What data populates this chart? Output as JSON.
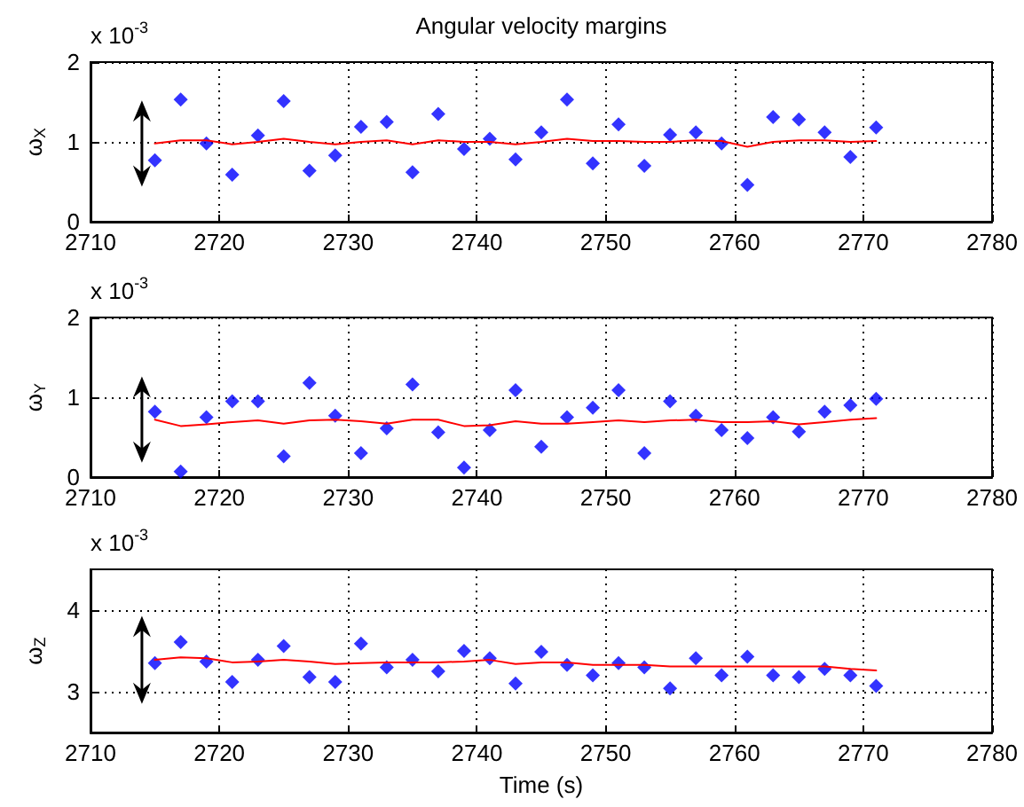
{
  "chart_data": [
    {
      "type": "scatter",
      "title": "Angular velocity margins",
      "ylabel": "ω$_{X}$",
      "annotations": [
        "x 10$^{-3}$"
      ],
      "x": [
        2715,
        2717,
        2719,
        2721,
        2723,
        2725,
        2727,
        2729,
        2731,
        2733,
        2735,
        2737,
        2739,
        2741,
        2743,
        2745,
        2747,
        2749,
        2751,
        2753,
        2755,
        2757,
        2759,
        2761,
        2763,
        2765,
        2767,
        2769,
        2771
      ],
      "series": [
        {
          "type": "scatter",
          "color": "#0000ff",
          "marker": "diamond",
          "values": [
            0.77,
            1.53,
            0.98,
            0.59,
            1.08,
            1.51,
            0.64,
            0.83,
            1.19,
            1.25,
            0.62,
            1.35,
            0.91,
            1.04,
            0.78,
            1.12,
            1.53,
            0.73,
            1.22,
            0.7,
            1.09,
            1.12,
            0.98,
            0.46,
            1.31,
            1.28,
            1.12,
            0.81,
            1.18
          ]
        },
        {
          "type": "line",
          "color": "#ff0000",
          "marker": "none",
          "values": [
            0.98,
            1.02,
            1.02,
            0.97,
            1.0,
            1.04,
            1.0,
            0.97,
            1.0,
            1.02,
            0.97,
            1.02,
            1.0,
            1.0,
            0.97,
            1.0,
            1.04,
            1.01,
            1.01,
            1.0,
            1.0,
            1.02,
            1.01,
            0.94,
            1.0,
            1.02,
            1.02,
            1.0,
            1.01
          ]
        }
      ],
      "xlim": [
        2710,
        2780
      ],
      "xticks": [
        2710,
        2720,
        2730,
        2740,
        2750,
        2760,
        2770,
        2780
      ],
      "ylim": [
        0,
        2
      ],
      "yticks": [
        0,
        1,
        2
      ],
      "grid": true
    },
    {
      "type": "scatter",
      "ylabel": "ω$_{Y}$",
      "annotations": [
        "x 10$^{-3}$"
      ],
      "x": [
        2715,
        2717,
        2719,
        2721,
        2723,
        2725,
        2727,
        2729,
        2731,
        2733,
        2735,
        2737,
        2739,
        2741,
        2743,
        2745,
        2747,
        2749,
        2751,
        2753,
        2755,
        2757,
        2759,
        2761,
        2763,
        2765,
        2767,
        2769,
        2771
      ],
      "series": [
        {
          "type": "scatter",
          "color": "#0000ff",
          "marker": "diamond",
          "values": [
            0.82,
            0.07,
            0.75,
            0.95,
            0.95,
            0.26,
            1.18,
            0.77,
            0.3,
            0.61,
            1.16,
            0.56,
            0.12,
            0.59,
            1.09,
            0.38,
            0.75,
            0.87,
            1.09,
            0.3,
            0.95,
            0.77,
            0.59,
            0.49,
            0.75,
            0.57,
            0.82,
            0.9,
            0.98
          ]
        },
        {
          "type": "line",
          "color": "#ff0000",
          "marker": "none",
          "values": [
            0.72,
            0.64,
            0.66,
            0.69,
            0.71,
            0.67,
            0.71,
            0.72,
            0.7,
            0.67,
            0.72,
            0.72,
            0.64,
            0.65,
            0.7,
            0.67,
            0.67,
            0.69,
            0.71,
            0.69,
            0.71,
            0.72,
            0.69,
            0.69,
            0.7,
            0.66,
            0.69,
            0.72,
            0.74
          ]
        }
      ],
      "xlim": [
        2710,
        2780
      ],
      "xticks": [
        2710,
        2720,
        2730,
        2740,
        2750,
        2760,
        2770,
        2780
      ],
      "ylim": [
        0,
        2
      ],
      "yticks": [
        0,
        1,
        2
      ],
      "grid": true
    },
    {
      "type": "scatter",
      "xlabel": "Time (s)",
      "ylabel": "ω$_{Z}$",
      "annotations": [
        "x 10$^{-3}$"
      ],
      "x": [
        2715,
        2717,
        2719,
        2721,
        2723,
        2725,
        2727,
        2729,
        2731,
        2733,
        2735,
        2737,
        2739,
        2741,
        2743,
        2745,
        2747,
        2749,
        2751,
        2753,
        2755,
        2757,
        2759,
        2761,
        2763,
        2765,
        2767,
        2769,
        2771
      ],
      "series": [
        {
          "type": "scatter",
          "color": "#0000ff",
          "marker": "diamond",
          "values": [
            3.35,
            3.61,
            3.37,
            3.12,
            3.39,
            3.56,
            3.18,
            3.12,
            3.59,
            3.3,
            3.39,
            3.25,
            3.5,
            3.41,
            3.1,
            3.49,
            3.33,
            3.2,
            3.35,
            3.3,
            3.04,
            3.41,
            3.2,
            3.43,
            3.2,
            3.18,
            3.28,
            3.2,
            3.07
          ]
        },
        {
          "type": "line",
          "color": "#ff0000",
          "marker": "none",
          "values": [
            3.39,
            3.42,
            3.41,
            3.36,
            3.37,
            3.39,
            3.37,
            3.34,
            3.35,
            3.36,
            3.36,
            3.36,
            3.37,
            3.39,
            3.34,
            3.36,
            3.36,
            3.33,
            3.33,
            3.33,
            3.31,
            3.31,
            3.31,
            3.31,
            3.31,
            3.31,
            3.31,
            3.28,
            3.26
          ]
        }
      ],
      "xlim": [
        2710,
        2780
      ],
      "xticks": [
        2710,
        2720,
        2730,
        2740,
        2750,
        2760,
        2770,
        2780
      ],
      "ylim": [
        2.5,
        4.5
      ],
      "yticks": [
        3,
        4
      ],
      "grid": true
    }
  ]
}
